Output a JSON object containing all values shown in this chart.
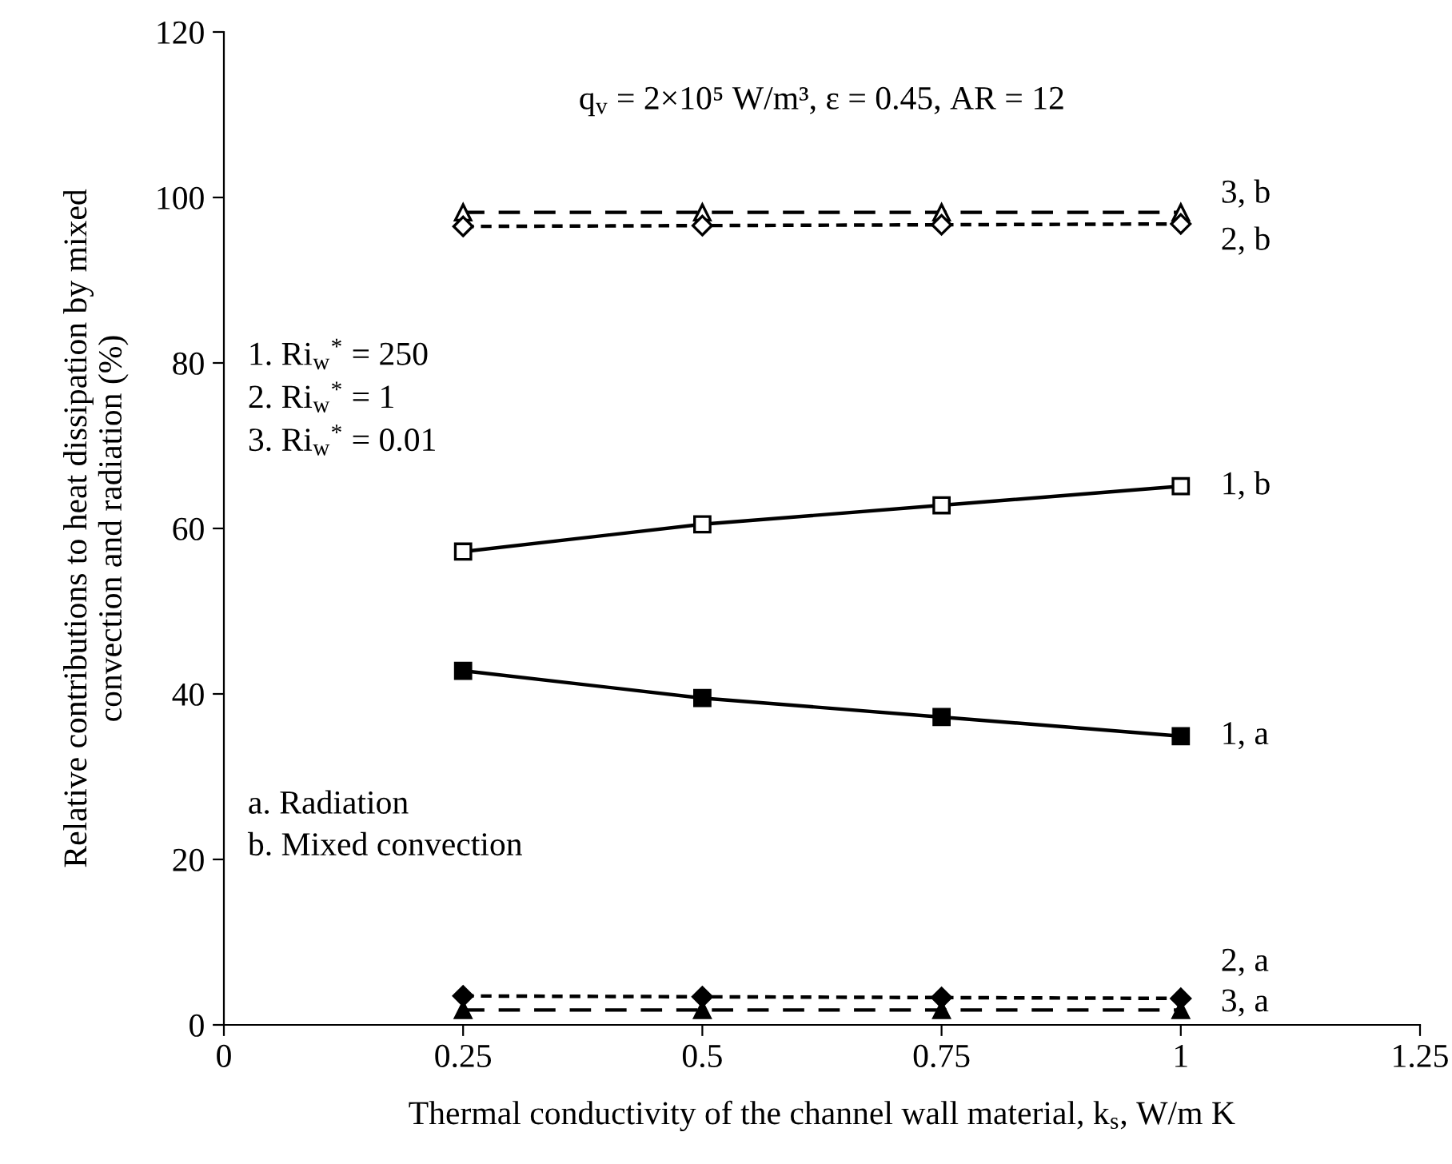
{
  "chart_data": {
    "type": "line",
    "xlabel": "Thermal conductivity of the channel wall material, k$_{s}$, W/m K",
    "ylabel": "Relative contributions to heat dissipation by mixed\nconvection and radiation (%)",
    "x": [
      0.25,
      0.5,
      0.75,
      1
    ],
    "series": [
      {
        "name": "3, b",
        "color": "#000000",
        "values": [
          98.2,
          98.2,
          98.2,
          98.2
        ],
        "marker": "triangle",
        "line_style": "dashed"
      },
      {
        "name": "2, b",
        "color": "#000000",
        "values": [
          96.5,
          96.6,
          96.7,
          96.8
        ],
        "marker": "diamond",
        "line_style": "dotted"
      },
      {
        "name": "1, b",
        "color": "#000000",
        "values": [
          57.2,
          60.5,
          62.8,
          65.1
        ],
        "marker": "square",
        "line_style": "solid"
      },
      {
        "name": "1, a",
        "color": "#000000",
        "values": [
          42.8,
          39.5,
          37.2,
          34.9
        ],
        "marker": "square",
        "line_style": "solid"
      },
      {
        "name": "2, a",
        "color": "#000000",
        "values": [
          3.5,
          3.4,
          3.3,
          3.2
        ],
        "marker": "diamond",
        "line_style": "dotted"
      },
      {
        "name": "3, a",
        "color": "#000000",
        "values": [
          1.8,
          1.8,
          1.8,
          1.8
        ],
        "marker": "triangle",
        "line_style": "dashed"
      }
    ],
    "xlim": [
      0,
      1.25
    ],
    "xticks": [
      0,
      0.25,
      0.5,
      0.75,
      1,
      1.25
    ],
    "ylim": [
      0,
      120
    ],
    "yticks": [
      0,
      20,
      40,
      60,
      80,
      100,
      120
    ],
    "grid": false,
    "legend": false,
    "annotations": [
      "q$_{v}$ = 2×10⁵ W/m³, ε = 0.45, AR = 12",
      "1. Ri$_{w}$$^{*}$ = 250\n2. Ri$_{w}$$^{*}$ = 1\n3. Ri$_{w}$$^{*}$ = 0.01",
      "a. Radiation\nb. Mixed convection"
    ]
  }
}
